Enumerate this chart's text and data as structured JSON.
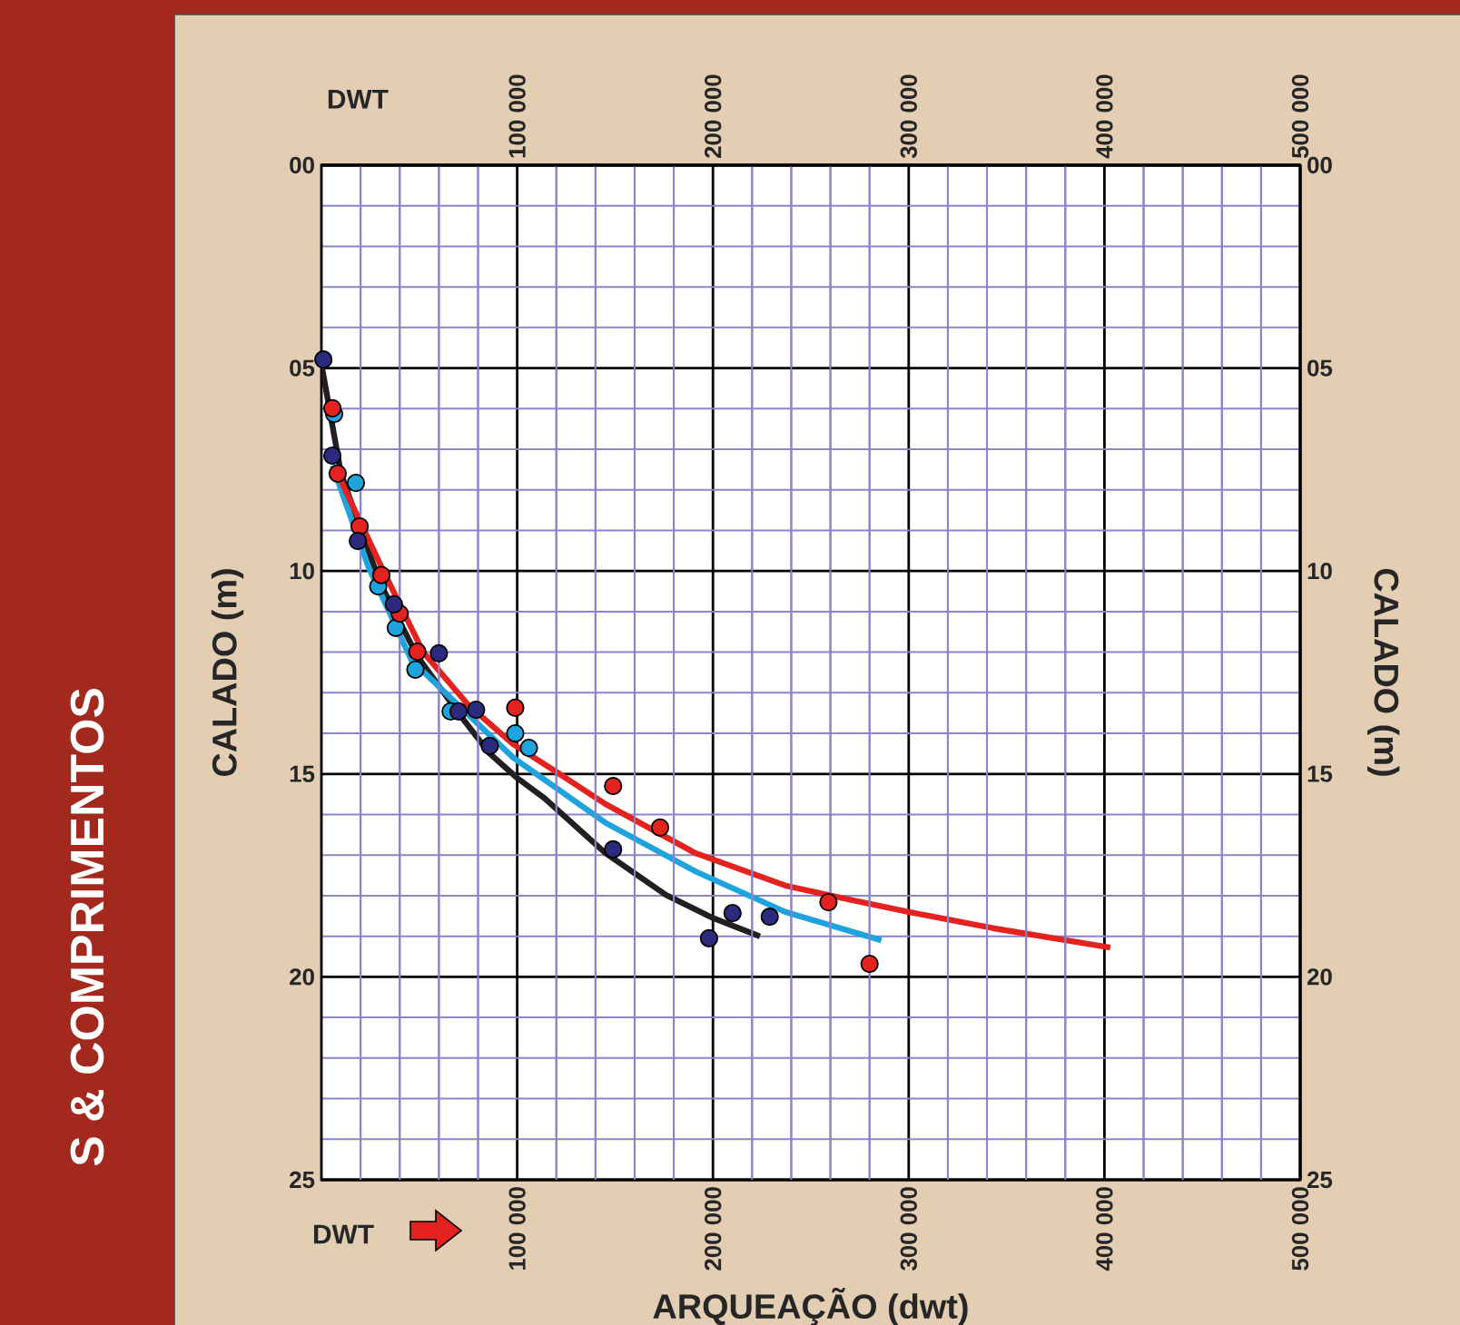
{
  "chart_data": {
    "type": "scatter",
    "xlabel": "ARQUEAÇÃO (dwt)",
    "x2label": "DWT",
    "ylabel": "CALADO (m)",
    "y2label": "CALADO (m)",
    "xlim": [
      0,
      500000
    ],
    "xticks": [
      {
        "value": 20000,
        "label": null
      },
      {
        "value": 40000,
        "label": null
      },
      {
        "value": 60000,
        "label": null
      },
      {
        "value": 80000,
        "label": null
      },
      {
        "value": 100000,
        "label": "100 000"
      },
      {
        "value": 120000,
        "label": null
      },
      {
        "value": 140000,
        "label": null
      },
      {
        "value": 160000,
        "label": null
      },
      {
        "value": 180000,
        "label": null
      },
      {
        "value": 200000,
        "label": "200 000"
      },
      {
        "value": 220000,
        "label": null
      },
      {
        "value": 240000,
        "label": null
      },
      {
        "value": 260000,
        "label": null
      },
      {
        "value": 280000,
        "label": null
      },
      {
        "value": 300000,
        "label": "300 000"
      },
      {
        "value": 320000,
        "label": null
      },
      {
        "value": 340000,
        "label": null
      },
      {
        "value": 360000,
        "label": null
      },
      {
        "value": 380000,
        "label": null
      },
      {
        "value": 400000,
        "label": "400 000"
      },
      {
        "value": 420000,
        "label": null
      },
      {
        "value": 440000,
        "label": null
      },
      {
        "value": 460000,
        "label": null
      },
      {
        "value": 480000,
        "label": null
      },
      {
        "value": 500000,
        "label": "500 000"
      }
    ],
    "x2lim": [
      0,
      500000
    ],
    "x2ticks": [
      {
        "value": 100000,
        "label": "100 000"
      },
      {
        "value": 200000,
        "label": "200 000"
      },
      {
        "value": 300000,
        "label": "300 000"
      },
      {
        "value": 400000,
        "label": "400 000"
      },
      {
        "value": 500000,
        "label": "500 000"
      }
    ],
    "ylim": [
      25,
      0
    ],
    "yticks": [
      {
        "value": 0,
        "label": "00"
      },
      {
        "value": 1,
        "label": null
      },
      {
        "value": 2,
        "label": null
      },
      {
        "value": 3,
        "label": null
      },
      {
        "value": 4,
        "label": null
      },
      {
        "value": 5,
        "label": "05"
      },
      {
        "value": 6,
        "label": null
      },
      {
        "value": 7,
        "label": null
      },
      {
        "value": 8,
        "label": null
      },
      {
        "value": 9,
        "label": null
      },
      10,
      {
        "value": 11,
        "label": null
      },
      {
        "value": 12,
        "label": null
      },
      {
        "value": 13,
        "label": null
      },
      {
        "value": 14,
        "label": null
      },
      15,
      {
        "value": 16,
        "label": null
      },
      {
        "value": 17,
        "label": null
      },
      {
        "value": 18,
        "label": null
      },
      {
        "value": 19,
        "label": null
      },
      20,
      {
        "value": 21,
        "label": null
      },
      {
        "value": 22,
        "label": null
      },
      {
        "value": 23,
        "label": null
      },
      {
        "value": 24,
        "label": null
      },
      25
    ],
    "y2lim": [
      25,
      0
    ],
    "y2ticks": [
      {
        "value": 0,
        "label": "00"
      },
      {
        "value": 5,
        "label": "05"
      },
      10,
      15,
      20,
      25
    ],
    "grid": true,
    "marker": "circle",
    "annotations": [
      "DWT",
      "S & COMPRIMENTOS"
    ],
    "series": [
      {
        "type": "line",
        "marker": "none",
        "color": "#231f20",
        "x": [
          0,
          10000,
          30000,
          49000,
          70000,
          86000,
          100000,
          114000,
          145000,
          176000,
          200000,
          224000
        ],
        "values": [
          4.9,
          7.6,
          10.3,
          12.1,
          13.5,
          14.5,
          15.1,
          15.6,
          16.95,
          17.98,
          18.55,
          19.0
        ]
      },
      {
        "type": "line",
        "marker": "none",
        "color": "#1fa3dc",
        "x": [
          5600,
          24000,
          46000,
          98000,
          145000,
          191000,
          237000,
          286000
        ],
        "values": [
          7.4,
          9.9,
          12.2,
          14.6,
          16.2,
          17.4,
          18.4,
          19.1
        ]
      },
      {
        "type": "line",
        "marker": "none",
        "color": "#e42320",
        "x": [
          7000,
          31000,
          52000,
          75000,
          98000,
          120000,
          145000,
          191000,
          237000,
          270000,
          300000,
          343000,
          403000
        ],
        "values": [
          7.47,
          9.93,
          12.0,
          13.3,
          14.27,
          14.95,
          15.74,
          16.95,
          17.75,
          18.1,
          18.4,
          18.8,
          19.28
        ]
      },
      {
        "color": "#1fa3dc",
        "x": [
          6500,
          17600,
          29000,
          38000,
          48000,
          66000,
          99000,
          106000
        ],
        "values": [
          6.13,
          7.83,
          10.38,
          11.4,
          12.43,
          13.46,
          14.0,
          14.36
        ]
      },
      {
        "color": "#e42320",
        "x": [
          5600,
          8300,
          19500,
          30600,
          40000,
          49000,
          99000,
          149000,
          173000,
          259000,
          280000
        ],
        "values": [
          5.99,
          7.6,
          8.9,
          10.1,
          11.05,
          11.99,
          13.37,
          15.3,
          16.32,
          18.16,
          19.68
        ]
      },
      {
        "color": "#2b2a7e",
        "x": [
          1000,
          5600,
          18600,
          37000,
          60000,
          70000,
          79000,
          86000,
          149000,
          198000,
          210000,
          229000
        ],
        "values": [
          4.79,
          7.16,
          9.26,
          10.82,
          12.03,
          13.46,
          13.42,
          14.31,
          16.86,
          19.05,
          18.43,
          18.52
        ]
      }
    ]
  }
}
